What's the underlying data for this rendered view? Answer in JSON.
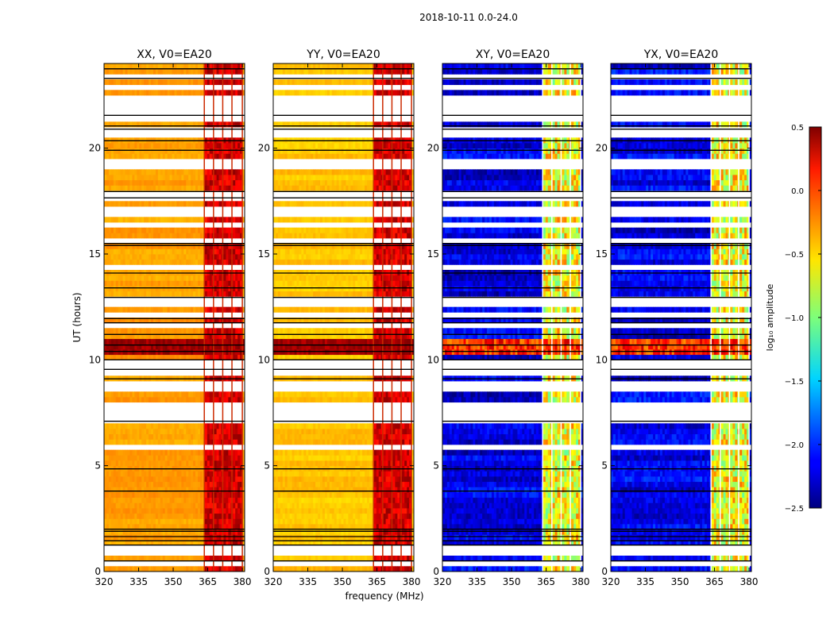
{
  "figure": {
    "suptitle": "2018-10-11 0.0-24.0",
    "xlabel": "frequency (MHz)",
    "ylabel": "UT (hours)"
  },
  "chart_data": {
    "type": "heatmap",
    "title": "2018-10-11 0.0-24.0",
    "xlabel": "frequency (MHz)",
    "ylabel": "UT (hours)",
    "xlim": [
      320,
      381
    ],
    "ylim": [
      0,
      24
    ],
    "xticks": [
      320,
      335,
      350,
      365,
      380
    ],
    "yticks": [
      0,
      5,
      10,
      15,
      20
    ],
    "panels": [
      {
        "name": "XX",
        "title": "XX, V0=EA20",
        "kind": "auto",
        "base": -0.35
      },
      {
        "name": "YY",
        "title": "YY, V0=EA20",
        "kind": "auto",
        "base": -0.45
      },
      {
        "name": "XY",
        "title": "XY, V0=EA20",
        "kind": "cross",
        "base": -2.2
      },
      {
        "name": "YX",
        "title": "YX, V0=EA20",
        "kind": "cross",
        "base": -2.2
      }
    ],
    "rfi_band_mhz": [
      363.5,
      380
    ],
    "rfi_subband_edges_mhz": [
      363.5,
      367.5,
      371.5,
      375.5,
      380
    ],
    "bright_time_band_hours": [
      10.3,
      11.1
    ],
    "gap_rows_hours": [
      0.35,
      0.9,
      1.15,
      5.85,
      7.25,
      7.6,
      7.85,
      8.55,
      8.9,
      9.35,
      9.65,
      9.85,
      11.6,
      12.1,
      12.75,
      14.45,
      15.6,
      16.3,
      17.0,
      17.55,
      17.85,
      19.25,
      19.45,
      20.6,
      20.8,
      21.5,
      22.0,
      22.3,
      22.85,
      23.45
    ],
    "flag_lines_hours": [
      0.5,
      1.25,
      1.45,
      1.65,
      1.9,
      2.0,
      3.8,
      4.85,
      7.1,
      9.1,
      9.55,
      10.0,
      10.4,
      10.7,
      11.2,
      11.75,
      11.95,
      12.95,
      13.4,
      14.1,
      15.4,
      15.5,
      17.65,
      17.95,
      19.9,
      20.35,
      20.9,
      21.05,
      21.55,
      23.3,
      23.75
    ],
    "colorbar": {
      "label": "log₁₀ amplitude",
      "min": -2.5,
      "max": 0.5,
      "ticks": [
        0.5,
        0.0,
        -0.5,
        -1.0,
        -1.5,
        -2.0,
        -2.5
      ],
      "tick_labels": [
        "0.5",
        "0.0",
        "−0.5",
        "−1.0",
        "−1.5",
        "−2.0",
        "−2.5"
      ],
      "colormap": "jet"
    }
  }
}
